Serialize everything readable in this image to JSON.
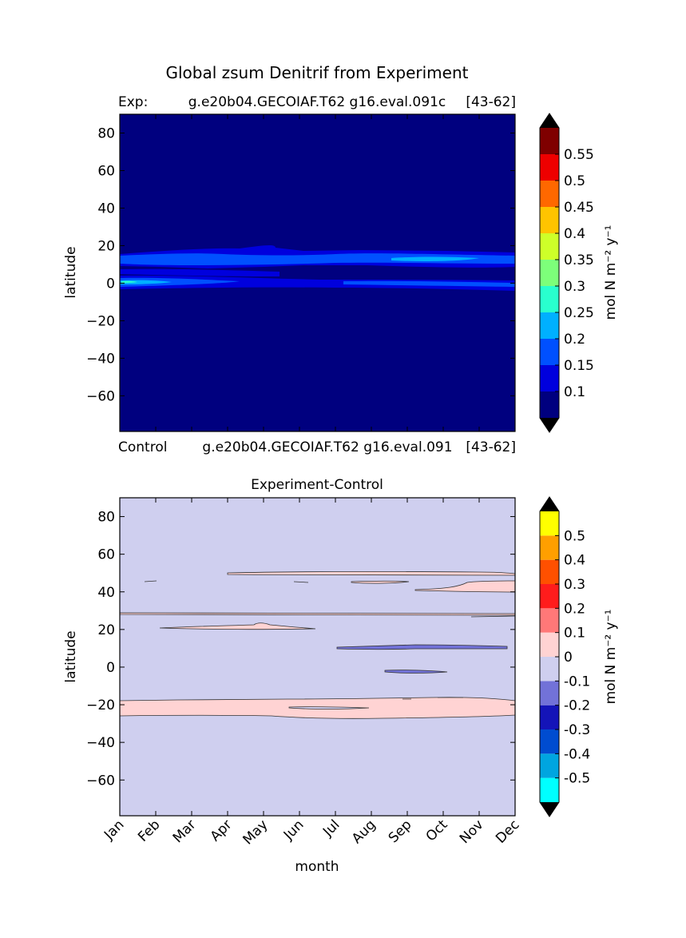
{
  "figure": {
    "title": "Global zsum Denitrif from Experiment"
  },
  "chart_data": [
    {
      "type": "heatmap",
      "panel": "top",
      "title_left": "Exp:",
      "title_center": "g.e20b04.GECOIAF.T62 g16.eval.091c",
      "title_right": "[43-62]",
      "bottom_left": "Control",
      "bottom_center": "g.e20b04.GECOIAF.T62 g16.eval.091",
      "bottom_right": "[43-62]",
      "xlabel": "",
      "ylabel": "latitude",
      "xlim": [
        0,
        11
      ],
      "ylim": [
        -79,
        90
      ],
      "yticks": [
        80,
        60,
        40,
        20,
        0,
        -20,
        -40,
        -60
      ],
      "background_level": "<0.05",
      "features": [
        {
          "lat": 13,
          "level": 0.15,
          "note": "band 9-18N all year"
        },
        {
          "lat": 0,
          "level": 0.2,
          "note": "equatorial band"
        },
        {
          "lat": 12,
          "level": 0.25,
          "note": "Sep-Nov max near 12N"
        }
      ],
      "colorbar": {
        "label": "mol N m⁻² y⁻¹",
        "ticks": [
          "0.1",
          "0.15",
          "0.2",
          "0.25",
          "0.3",
          "0.35",
          "0.4",
          "0.45",
          "0.5",
          "0.55"
        ],
        "colors": [
          "#00007f",
          "#0000dd",
          "#0050ff",
          "#00b0ff",
          "#29ffce",
          "#7dff7a",
          "#ceff29",
          "#ffc400",
          "#ff6800",
          "#ee0000",
          "#7f0000"
        ],
        "under_color": "#000000",
        "over_color": "#000000"
      }
    },
    {
      "type": "heatmap",
      "panel": "bottom",
      "title": "Experiment-Control",
      "xlabel": "month",
      "ylabel": "latitude",
      "xlim": [
        0,
        11
      ],
      "ylim": [
        -79,
        90
      ],
      "categories": [
        "Jan",
        "Feb",
        "Mar",
        "Apr",
        "May",
        "Jun",
        "Jul",
        "Aug",
        "Sep",
        "Oct",
        "Nov",
        "Dec"
      ],
      "yticks": [
        80,
        60,
        40,
        20,
        0,
        -20,
        -40,
        -60
      ],
      "background_level": "-0.1 to 0",
      "features": [
        {
          "lat": -20,
          "level": "0 to 0.1",
          "note": "band all year"
        },
        {
          "lat": 49,
          "level": "0 to 0.1",
          "note": "Apr-Dec"
        },
        {
          "lat": 21,
          "level": "0 to 0.1",
          "note": "Mar-Jun"
        },
        {
          "lat": 10,
          "level": "-0.2 to -0.1",
          "note": "Aug-Dec"
        },
        {
          "lat": -2,
          "level": "-0.2 to -0.1",
          "note": "Sep"
        }
      ],
      "colorbar": {
        "label": "mol N m⁻² y⁻¹",
        "ticks": [
          "-0.5",
          "-0.4",
          "-0.3",
          "-0.2",
          "-0.1",
          "0",
          "0.1",
          "0.2",
          "0.3",
          "0.4",
          "0.5"
        ],
        "colors": [
          "#00ffff",
          "#00a5e0",
          "#004cd0",
          "#1414b8",
          "#7272d8",
          "#cfcfef",
          "#ffd3d3",
          "#ff7878",
          "#ff1c1c",
          "#ff5000",
          "#ff9f00",
          "#ffff00"
        ],
        "under_color": "#000000",
        "over_color": "#000000"
      }
    }
  ]
}
